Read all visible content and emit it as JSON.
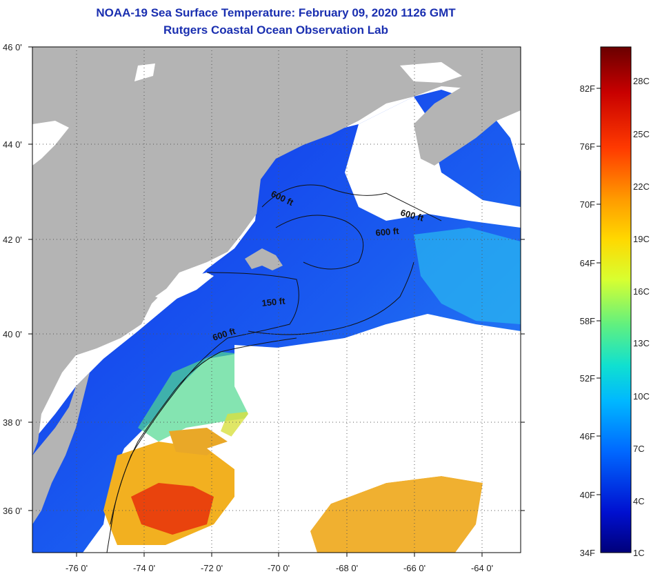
{
  "header": {
    "title": "NOAA-19 Sea Surface Temperature:  February 09, 2020 1126 GMT",
    "subtitle": "Rutgers Coastal Ocean Observation Lab"
  },
  "map": {
    "lat_ticks": [
      "46 0'",
      "44 0'",
      "42 0'",
      "40 0'",
      "38 0'",
      "36 0'"
    ],
    "lon_ticks": [
      "-76 0'",
      "-74 0'",
      "-72 0'",
      "-70 0'",
      "-68 0'",
      "-66 0'",
      "-64 0'"
    ],
    "contour_labels": [
      "600 ft",
      "600 ft",
      "600 ft",
      "150 ft",
      "600 ft"
    ],
    "land_color": "#b4b4b4",
    "cloud_color": "#ffffff",
    "grid": "dotted"
  },
  "colorbar": {
    "fahrenheit": [
      "82F",
      "76F",
      "70F",
      "64F",
      "58F",
      "52F",
      "46F",
      "40F",
      "34F"
    ],
    "celsius": [
      "28C",
      "25C",
      "22C",
      "19C",
      "16C",
      "13C",
      "10C",
      "7C",
      "4C",
      "1C"
    ],
    "gradient": [
      "#7a0000",
      "#d00000",
      "#ff3000",
      "#ff9000",
      "#ffd000",
      "#e0ff20",
      "#80ff70",
      "#20e0c0",
      "#00c0ff",
      "#0070ff",
      "#0020e0",
      "#000080"
    ]
  }
}
